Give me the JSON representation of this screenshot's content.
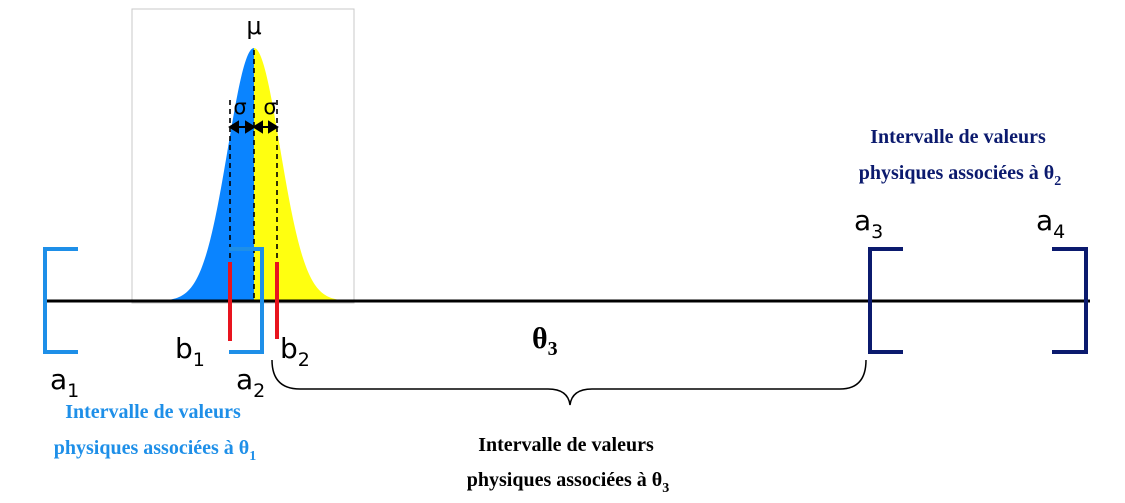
{
  "labels": {
    "a1": {
      "main": "a",
      "sub": "1"
    },
    "a2": {
      "main": "a",
      "sub": "2"
    },
    "a3": {
      "main": "a",
      "sub": "3"
    },
    "a4": {
      "main": "a",
      "sub": "4"
    },
    "b1": {
      "main": "b",
      "sub": "1"
    },
    "b2": {
      "main": "b",
      "sub": "2"
    },
    "mu": "μ",
    "sigma_left": "σ",
    "sigma_right": "σ",
    "theta3": {
      "main": "θ",
      "sub": "3"
    }
  },
  "captions": {
    "theta1": {
      "line1": "Intervalle de valeurs",
      "line2_main": "physiques associées à θ",
      "line2_sub": "1"
    },
    "theta2": {
      "line1": "Intervalle de valeurs",
      "line2_main": "physiques associées à θ",
      "line2_sub": "2"
    },
    "theta3": {
      "line1": "Intervalle de valeurs",
      "line2_main": "physiques associées à θ",
      "line2_sub": "3"
    }
  },
  "colors": {
    "interval1": "#1E8FE8",
    "interval2": "#0B1A6E",
    "caption1": "#1E8FE8",
    "caption2": "#0B1A6E",
    "caption3": "#000000",
    "gaussian_left": "#0A84FF",
    "gaussian_right": "#FFFF10",
    "marker": "#E8141E",
    "axis": "#000000"
  }
}
